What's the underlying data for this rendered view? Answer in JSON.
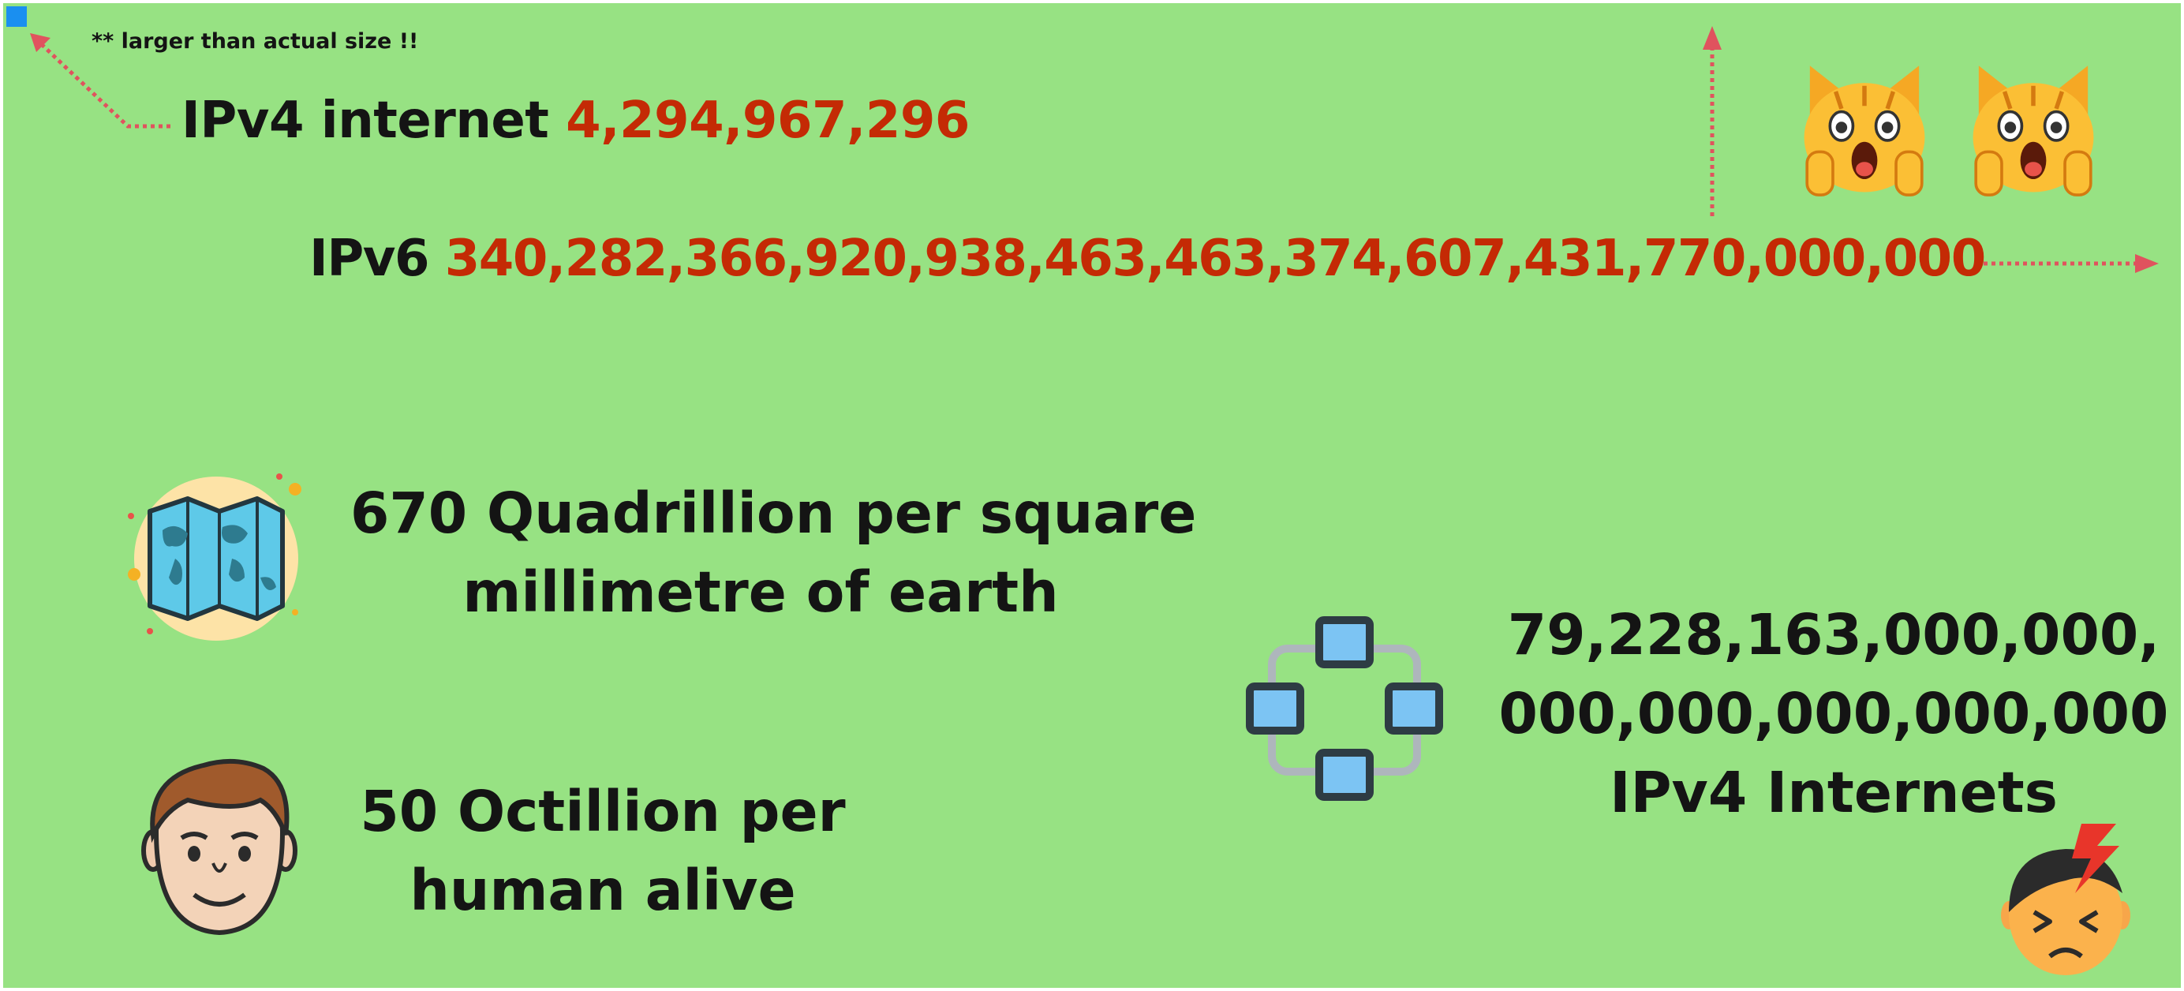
{
  "note": "** larger than actual size !!",
  "ipv4": {
    "label": "IPv4 internet",
    "value": "4,294,967,296"
  },
  "ipv6": {
    "label": "IPv6",
    "value": "340,282,366,920,938,463,463,374,607,431,770,000,000"
  },
  "facts": {
    "earth": {
      "line1": "670 Quadrillion per square",
      "line2": "millimetre of earth"
    },
    "human": {
      "line1": "50 Octillion per",
      "line2": "human alive"
    },
    "internets": {
      "line1": "79,228,163,000,000,",
      "line2": "000,000,000,000,000",
      "line3": "IPv4 Internets"
    }
  },
  "icons": [
    "shocked-cat-icon",
    "shocked-cat-icon",
    "world-map-icon",
    "man-face-icon",
    "network-icon",
    "headache-face-icon",
    "arrow-icon"
  ],
  "colors": {
    "background": "#97e283",
    "accent_red": "#c42a05",
    "arrow": "#e0535e",
    "text": "#141414"
  }
}
